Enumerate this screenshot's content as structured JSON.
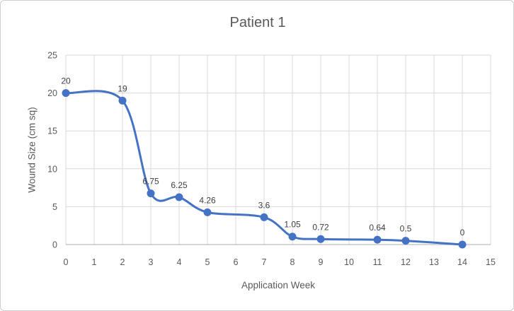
{
  "chart_data": {
    "type": "line",
    "title": "Patient 1",
    "xlabel": "Application Week",
    "ylabel": "Wound Size (cm sq)",
    "series": [
      {
        "name": "Patient 1",
        "x": [
          0,
          2,
          3,
          4,
          5,
          7,
          8,
          9,
          11,
          12,
          14
        ],
        "values": [
          20,
          19,
          6.75,
          6.25,
          4.26,
          3.6,
          1.05,
          0.72,
          0.64,
          0.5,
          0
        ],
        "point_labels": [
          "20",
          "19",
          "6.75",
          "6.25",
          "4.26",
          "3.6",
          "1.05",
          "0.72",
          "0.64",
          "0.5",
          "0"
        ],
        "color": "#4472C4",
        "smooth": true,
        "marker": "circle"
      }
    ],
    "xlim": [
      0,
      15
    ],
    "ylim": [
      0,
      25
    ],
    "x_tick_step": 1,
    "y_tick_step": 5,
    "grid": "both",
    "legend": "none",
    "colors": {
      "grid": "#D9D9D9",
      "axis_line": "#BFBFBF",
      "axis_text": "#595959",
      "title_text": "#595959",
      "data_label_text": "#404040",
      "background": "#FFFFFF",
      "border": "#D0CECE"
    }
  }
}
